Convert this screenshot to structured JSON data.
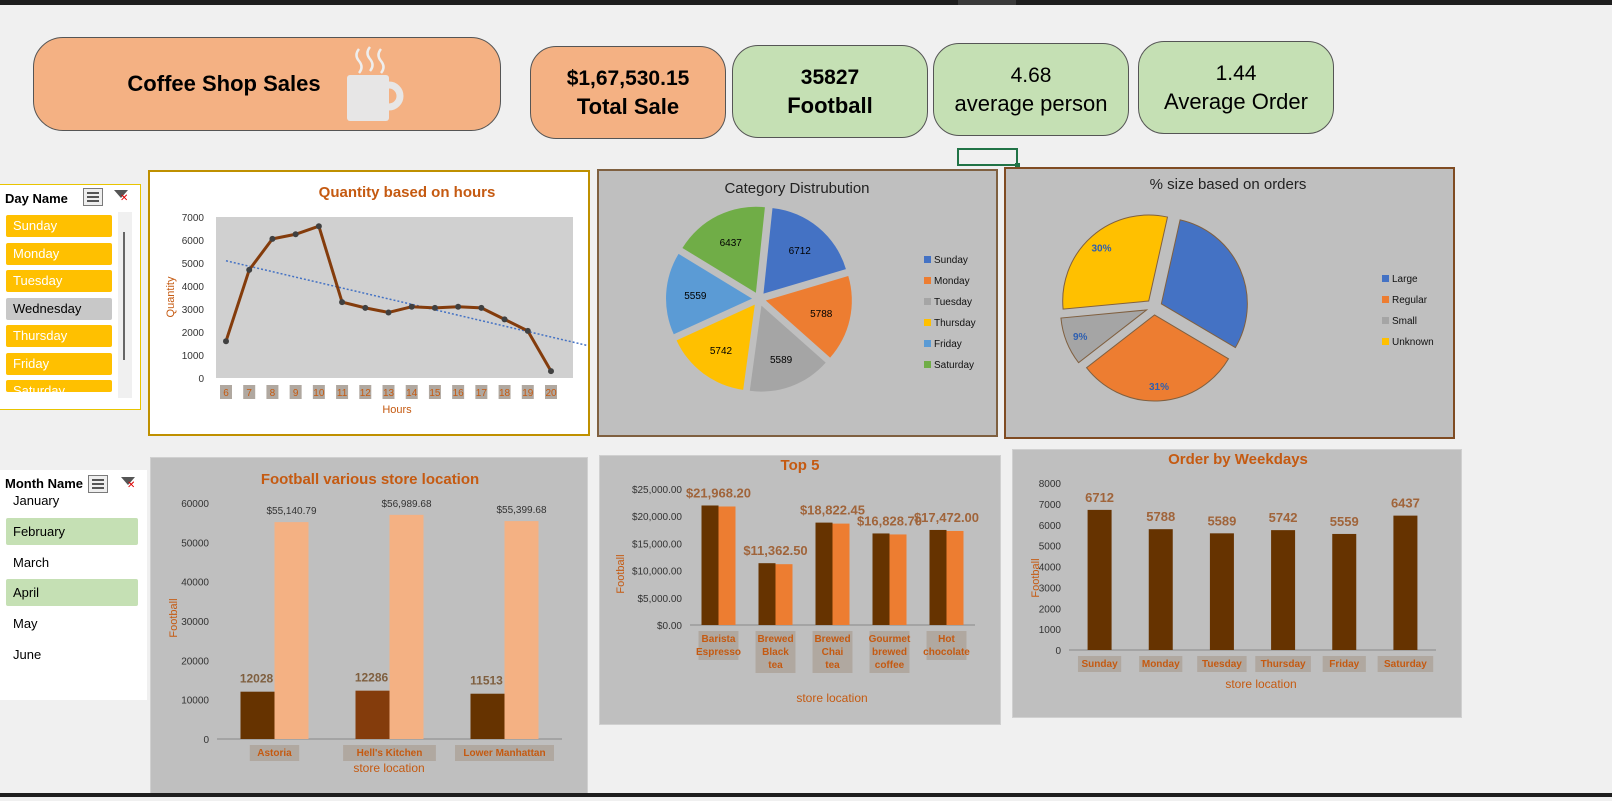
{
  "dashboard": {
    "title": "Coffee  Shop Sales",
    "kpis": [
      {
        "value": "$1,67,530.15",
        "label": "Total Sale"
      },
      {
        "value": "35827",
        "label": "Football"
      },
      {
        "value": "4.68",
        "label": "average person"
      },
      {
        "value": "1.44",
        "label": "Average Order"
      }
    ]
  },
  "slicers": {
    "day": {
      "header": "Day Name",
      "items": [
        {
          "label": "Sunday",
          "selected": true
        },
        {
          "label": "Monday",
          "selected": true
        },
        {
          "label": "Tuesday",
          "selected": true
        },
        {
          "label": "Wednesday",
          "selected": false
        },
        {
          "label": "Thursday",
          "selected": true
        },
        {
          "label": "Friday",
          "selected": true
        },
        {
          "label": "Saturday",
          "selected": true
        }
      ]
    },
    "month": {
      "header": "Month Name",
      "items": [
        {
          "label": "January",
          "selected": false
        },
        {
          "label": "February",
          "selected": true
        },
        {
          "label": "March",
          "selected": false
        },
        {
          "label": "April",
          "selected": true
        },
        {
          "label": "May",
          "selected": false
        },
        {
          "label": "June",
          "selected": false
        }
      ]
    }
  },
  "colors": {
    "brown_dark": "#843c0c",
    "brown_bar": "#663300",
    "peach": "#f4b183",
    "orange": "#ed7d31",
    "title_orange": "#c55a11",
    "green_light": "#c5e0b4",
    "slicer_yellow": "#ffc000",
    "chart_gray": "#bfbfbf"
  },
  "chart_data": [
    {
      "id": "hours",
      "type": "line",
      "title": "Quantity based on hours",
      "xlabel": "Hours",
      "ylabel": "Quantity",
      "x": [
        6,
        7,
        8,
        9,
        10,
        11,
        12,
        13,
        14,
        15,
        16,
        17,
        18,
        19,
        20
      ],
      "values": [
        1600,
        4700,
        6050,
        6250,
        6600,
        3300,
        3050,
        2850,
        3100,
        3050,
        3100,
        3050,
        2550,
        2050,
        300
      ],
      "ylim": [
        0,
        7000
      ],
      "yticks": [
        0,
        1000,
        2000,
        3000,
        4000,
        5000,
        6000,
        7000
      ],
      "trendline": true
    },
    {
      "id": "category",
      "type": "pie",
      "title": "Category Distrubution",
      "labels": [
        "Sunday",
        "Monday",
        "Tuesday",
        "Thursday",
        "Friday",
        "Saturday"
      ],
      "values": [
        6712,
        5788,
        5589,
        5742,
        5559,
        6437
      ],
      "colors": [
        "#4472c4",
        "#ed7d31",
        "#a5a5a5",
        "#ffc000",
        "#5b9bd5",
        "#70ad47"
      ],
      "legend": "right"
    },
    {
      "id": "size",
      "type": "pie",
      "title": "% size based on orders",
      "labels": [
        "Large",
        "Regular",
        "Small",
        "Unknown"
      ],
      "values": [
        30,
        31,
        9,
        30
      ],
      "data_labels": [
        "",
        "31%",
        "9%",
        "30%"
      ],
      "colors": [
        "#4472c4",
        "#ed7d31",
        "#a5a5a5",
        "#ffc000"
      ],
      "legend": "right"
    },
    {
      "id": "store",
      "type": "bar",
      "title": "Football various store location",
      "xlabel": "store location",
      "ylabel": "Football",
      "categories": [
        "Astoria",
        "Hell's Kitchen",
        "Lower Manhattan"
      ],
      "series": [
        {
          "values": [
            12028,
            12286,
            11513
          ],
          "labels": [
            "12028",
            "12286",
            "11513"
          ]
        },
        {
          "values": [
            55140.79,
            56989.68,
            55399.68
          ],
          "labels": [
            "$55,140.79",
            "$56,989.68",
            "$55,399.68"
          ]
        }
      ],
      "ylim": [
        0,
        60000
      ],
      "yticks": [
        "0",
        "10000",
        "20000",
        "30000",
        "40000",
        "50000",
        "60000"
      ]
    },
    {
      "id": "top5",
      "type": "bar",
      "title": "Top 5",
      "xlabel": "store location",
      "ylabel": "Football",
      "categories": [
        "Barista Espresso",
        "Brewed Black tea",
        "Brewed Chai tea",
        "Gourmet brewed coffee",
        "Hot chocolate"
      ],
      "values": [
        21968.2,
        11362.5,
        18822.45,
        16828.7,
        17472.0
      ],
      "labels": [
        "$21,968.20",
        "$11,362.50",
        "$18,822.45",
        "$16,828.70",
        "$17,472.00"
      ],
      "ylim": [
        0,
        25000
      ],
      "yticks": [
        "$0.00",
        "$5,000.00",
        "$10,000.00",
        "$15,000.00",
        "$20,000.00",
        "$25,000.00"
      ]
    },
    {
      "id": "weekdays",
      "type": "bar",
      "title": "Order by Weekdays",
      "xlabel": "store location",
      "ylabel": "Football",
      "categories": [
        "Sunday",
        "Monday",
        "Tuesday",
        "Thursday",
        "Friday",
        "Saturday"
      ],
      "values": [
        6712,
        5788,
        5589,
        5742,
        5559,
        6437
      ],
      "ylim": [
        0,
        8000
      ],
      "yticks": [
        "0",
        "1000",
        "2000",
        "3000",
        "4000",
        "5000",
        "6000",
        "7000",
        "8000"
      ]
    }
  ]
}
